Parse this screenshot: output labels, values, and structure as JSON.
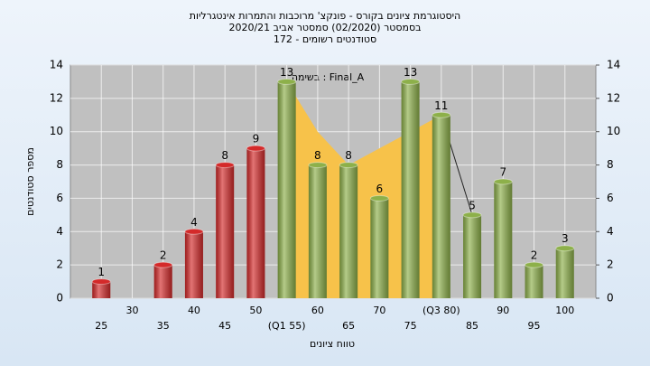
{
  "chart_data": {
    "type": "bar",
    "title": [
      "היסטוגרמת ציונים בקורס - פונקצ' מרוכבות והתמרות אינטגרליות",
      "בסמסטר  (02/2020)  סמסטר אביב 2020/21",
      "סטודנטים רשומים - 172"
    ],
    "annotation": "בשימה : Final_A",
    "x_label": "טווח ציונים",
    "y_label": "מספר סטודנטים",
    "categories": [
      "25",
      "30",
      "35",
      "40",
      "45",
      "50",
      "(Q1 55)",
      "60",
      "65",
      "70",
      "75",
      "(Q3 80)",
      "85",
      "90",
      "95",
      "100"
    ],
    "values": [
      1,
      null,
      2,
      4,
      8,
      9,
      13,
      8,
      8,
      6,
      13,
      11,
      5,
      7,
      2,
      3
    ],
    "colors": [
      "#d42a2a",
      "#d42a2a",
      "#d42a2a",
      "#d42a2a",
      "#d42a2a",
      "#d42a2a",
      "#8db04a",
      "#8db04a",
      "#8db04a",
      "#8db04a",
      "#8db04a",
      "#8db04a",
      "#8db04a",
      "#8db04a",
      "#8db04a",
      "#8db04a"
    ],
    "area": {
      "color": "#f7c24a",
      "values": [
        null,
        null,
        null,
        null,
        null,
        null,
        13,
        10,
        8,
        9,
        10,
        11,
        null,
        null,
        null,
        null
      ]
    },
    "line": {
      "color": "#222222",
      "values": [
        null,
        null,
        null,
        null,
        null,
        null,
        null,
        null,
        null,
        null,
        null,
        11,
        5,
        null,
        null,
        null
      ]
    },
    "ylim": [
      0,
      14
    ],
    "yticks": [
      0,
      2,
      4,
      6,
      8,
      10,
      12,
      14
    ],
    "y2lim": [
      0,
      14
    ],
    "y2ticks": [
      0,
      2,
      4,
      6,
      8,
      10,
      12,
      14
    ],
    "grid": true
  }
}
